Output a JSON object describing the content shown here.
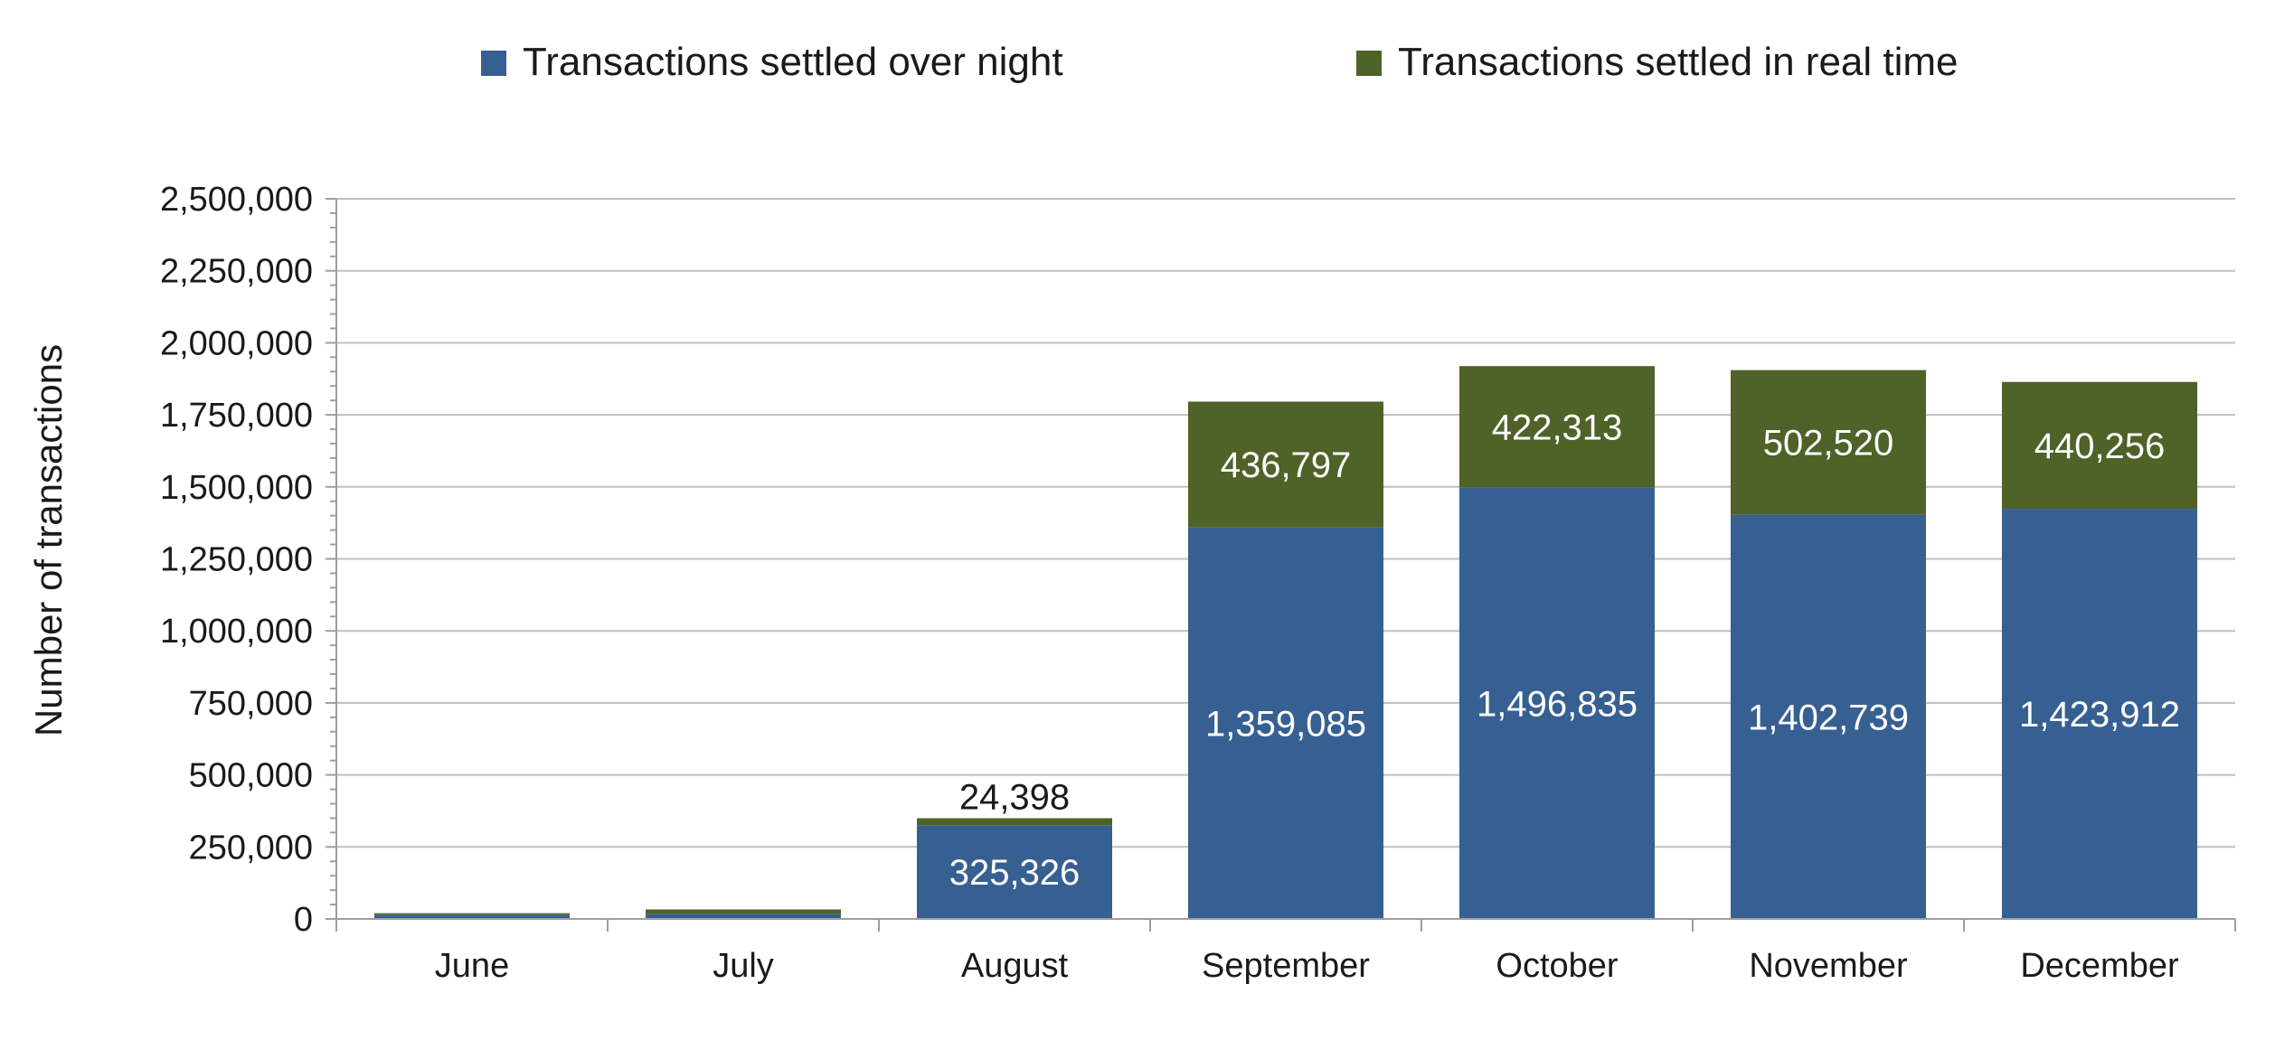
{
  "chart_data": {
    "type": "bar",
    "stacked": true,
    "categories": [
      "June",
      "July",
      "August",
      "September",
      "October",
      "November",
      "December"
    ],
    "series": [
      {
        "name": "Transactions settled over night",
        "color": "#376092",
        "values": [
          15000,
          18000,
          325326,
          1359085,
          1496835,
          1402739,
          1423912
        ],
        "labels": [
          "",
          "",
          "325,326",
          "1,359,085",
          "1,496,835",
          "1,402,739",
          "1,423,912"
        ],
        "label_color": "#ffffff"
      },
      {
        "name": "Transactions settled in real time",
        "color": "#4f6228",
        "values": [
          5000,
          15000,
          24398,
          436797,
          422313,
          502520,
          440256
        ],
        "labels": [
          "",
          "",
          "24,398",
          "436,797",
          "422,313",
          "502,520",
          "440,256"
        ],
        "label_color": "#ffffff"
      }
    ],
    "ylabel": "Number of transactions",
    "xlabel": "",
    "ylim": [
      0,
      2500000
    ],
    "yticks": [
      0,
      250000,
      500000,
      750000,
      1000000,
      1250000,
      1500000,
      1750000,
      2000000,
      2250000,
      2500000
    ],
    "ytick_labels": [
      "0",
      "250,000",
      "500,000",
      "750,000",
      "1,000,000",
      "1,250,000",
      "1,500,000",
      "1,750,000",
      "2,000,000",
      "2,250,000",
      "2,500,000"
    ],
    "grid": true,
    "legend_position": "top",
    "gridline_color": "#bfbfbf"
  }
}
